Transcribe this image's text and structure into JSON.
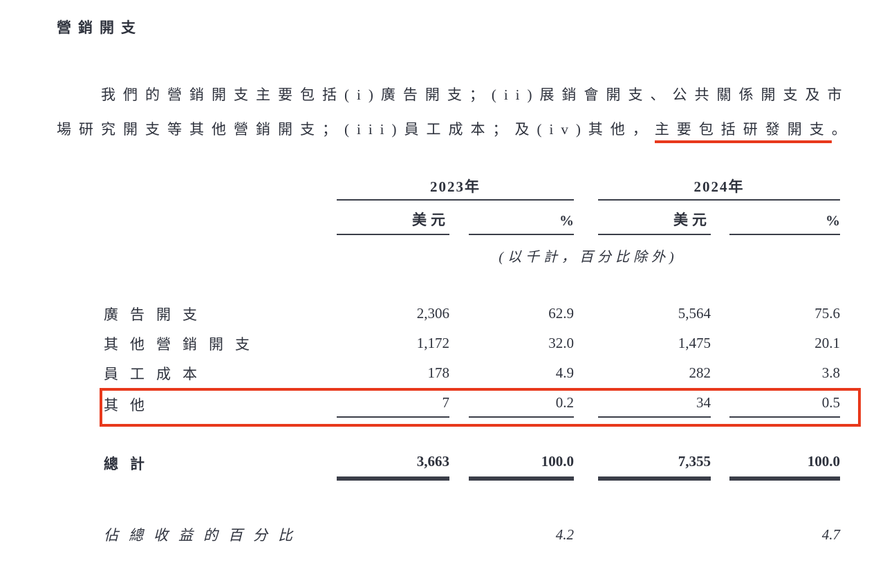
{
  "doc": {
    "title": "營銷開支",
    "paragraph": {
      "line1": "我們的營銷開支主要包括(i)廣告開支；(ii)展銷會開支、公共關係開支及市",
      "line2_pre": "場研究開支等其他營銷開支；(iii)員工成本；及(iv)其他，",
      "line2_highlight": "主要包括研發開支",
      "line2_period": "。"
    }
  },
  "table": {
    "year_groups": [
      {
        "label": "2023年"
      },
      {
        "label": "2024年"
      }
    ],
    "sub_headers": [
      "美元",
      "%",
      "美元",
      "%"
    ],
    "unit_note": "(以千計，百分比除外)",
    "rows": [
      {
        "label": "廣告開支",
        "values": [
          "2,306",
          "62.9",
          "5,564",
          "75.6"
        ],
        "highlighted": false
      },
      {
        "label": "其他營銷開支",
        "values": [
          "1,172",
          "32.0",
          "1,475",
          "20.1"
        ],
        "highlighted": false
      },
      {
        "label": "員工成本",
        "values": [
          "178",
          "4.9",
          "282",
          "3.8"
        ],
        "highlighted": false
      },
      {
        "label": "其他",
        "values": [
          "7",
          "0.2",
          "34",
          "0.5"
        ],
        "highlighted": true
      }
    ],
    "total_row": {
      "label": "總計",
      "values": [
        "3,663",
        "100.0",
        "7,355",
        "100.0"
      ]
    },
    "footer_row": {
      "label": "佔總收益的百分比",
      "pct_2023": "4.2",
      "pct_2024": "4.7"
    }
  },
  "colors": {
    "text": "#2e323d",
    "rule": "#3b3e49",
    "annotation_red": "#e8391c"
  }
}
